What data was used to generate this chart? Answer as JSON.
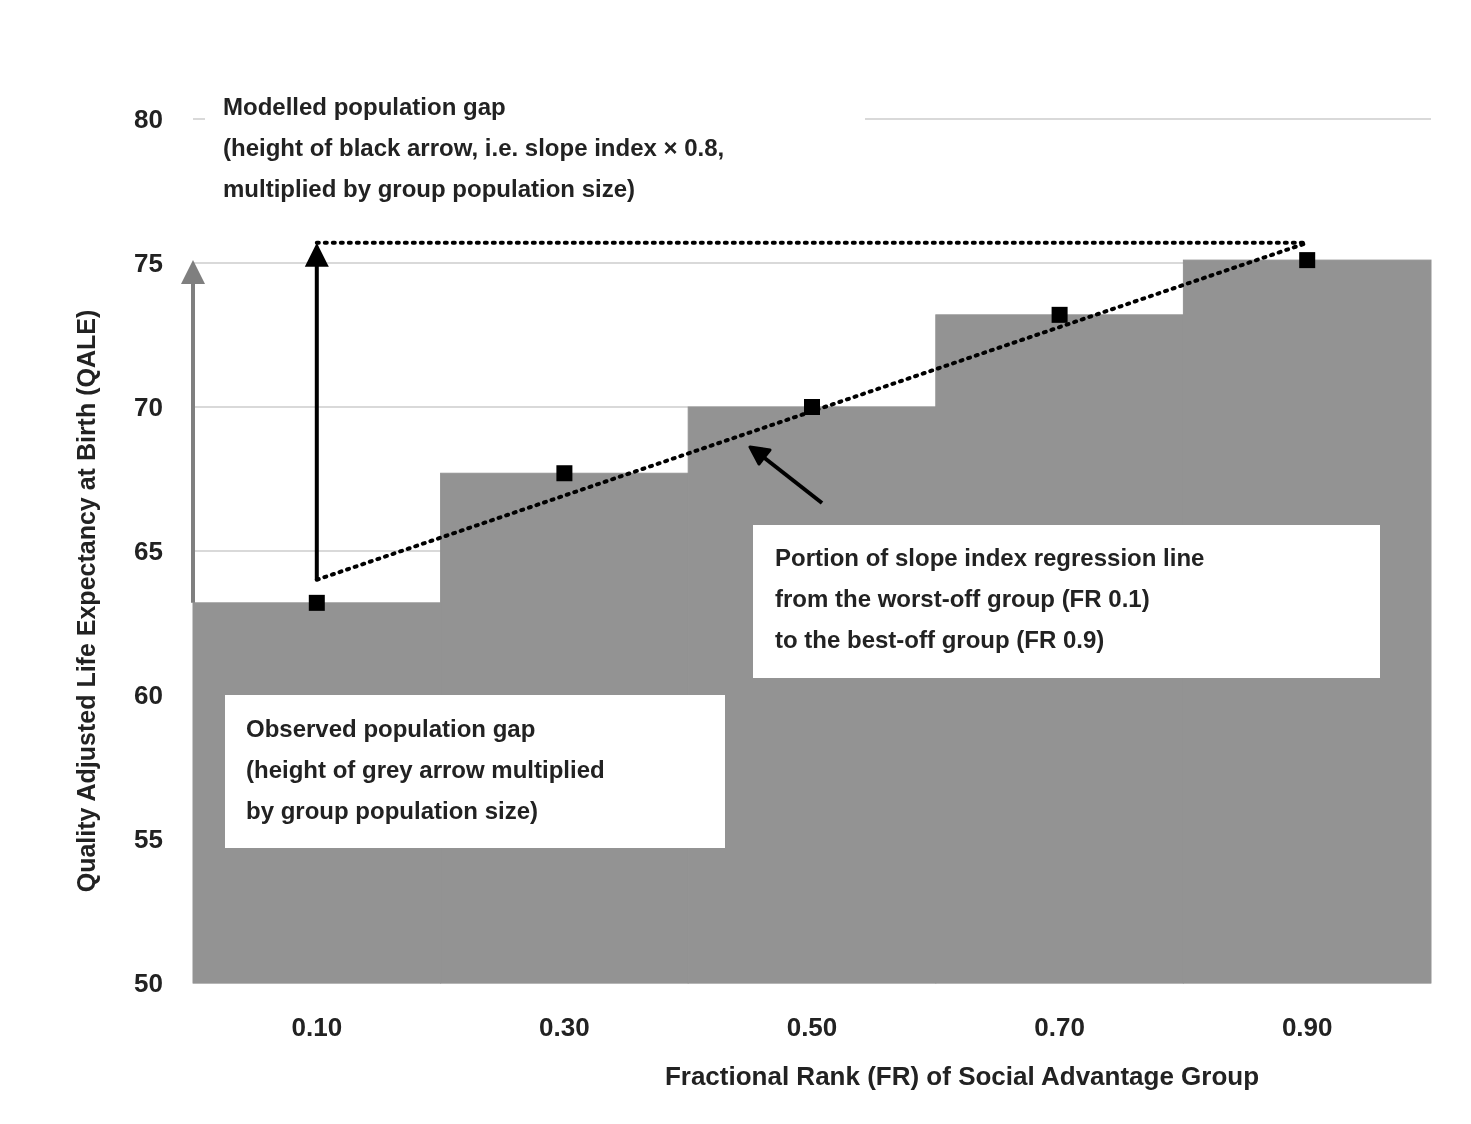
{
  "chart_data": {
    "type": "bar",
    "xlabel": "Fractional Rank (FR) of Social Advantage Group",
    "ylabel": "Quality Adjusted Life Expectancy at Birth (QALE)",
    "categories": [
      "0.10",
      "0.30",
      "0.50",
      "0.70",
      "0.90"
    ],
    "ylim": [
      50,
      80
    ],
    "yticks": [
      50,
      55,
      60,
      65,
      70,
      75,
      80
    ],
    "grid": "y",
    "annotations": [
      "Modelled population gap\n(height of black arrow, i.e. slope index × 0.8,\nmultiplied by group population size)",
      "Observed population gap\n(height of grey arrow multiplied\nby group population size)",
      "Portion of slope index regression line\nfrom the worst-off group (FR 0.1)\nto the best-off group (FR 0.9)"
    ],
    "series": [
      {
        "color": "#939393",
        "values": [
          63.2,
          67.7,
          70.0,
          73.2,
          75.1
        ]
      },
      {
        "type": "scatter",
        "color": "#000000",
        "marker": "square",
        "x": [
          "0.10",
          "0.30",
          "0.50",
          "0.70",
          "0.90"
        ],
        "values": [
          63.2,
          67.7,
          70.0,
          73.2,
          75.1
        ]
      },
      {
        "type": "line",
        "color": "#000000",
        "line_style": "dotted",
        "x": [
          "0.10",
          "0.90"
        ],
        "values": [
          64.0,
          75.7
        ]
      },
      {
        "type": "line",
        "color": "#000000",
        "line_style": "dotted",
        "x": [
          "0.10",
          "0.90"
        ],
        "values": [
          75.7,
          75.7
        ]
      }
    ]
  }
}
